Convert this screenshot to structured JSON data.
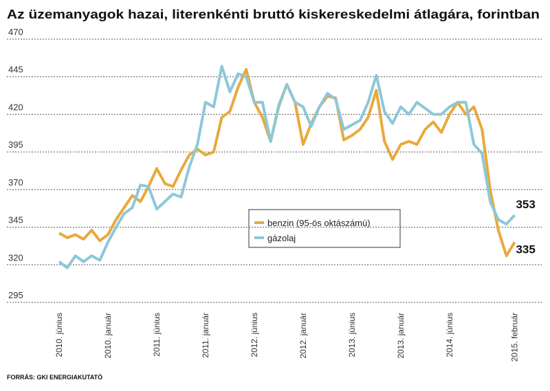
{
  "chart_data": {
    "type": "line",
    "title": "Az üzemanyagok hazai, literenkénti bruttó kiskereskedelmi átlagára, forintban",
    "source": "FORRÁS: GKI ENERGIAKUTATÓ",
    "categories": [
      "2010. június",
      null,
      null,
      null,
      null,
      null,
      "2010. január",
      null,
      null,
      null,
      null,
      null,
      "2011. június",
      null,
      null,
      null,
      null,
      null,
      "2011. január",
      null,
      null,
      null,
      null,
      null,
      "2012. június",
      null,
      null,
      null,
      null,
      null,
      "2012. január",
      null,
      null,
      null,
      null,
      null,
      "2013. június",
      null,
      null,
      null,
      null,
      null,
      "2013. január",
      null,
      null,
      null,
      null,
      null,
      "2014. június",
      null,
      null,
      null,
      null,
      null,
      null,
      null,
      "2015. február"
    ],
    "series": [
      {
        "name": "benzin (95-ös oktászámú)",
        "color": "#e8a93c",
        "values": [
          341,
          338,
          340,
          337,
          343,
          336,
          340,
          350,
          358,
          366,
          362,
          372,
          384,
          374,
          372,
          383,
          393,
          397,
          393,
          395,
          418,
          422,
          438,
          450,
          428,
          418,
          402,
          425,
          440,
          428,
          400,
          414,
          425,
          432,
          431,
          403,
          406,
          410,
          418,
          436,
          402,
          390,
          400,
          402,
          400,
          410,
          415,
          408,
          420,
          428,
          420,
          425,
          410,
          370,
          343,
          326,
          335
        ]
      },
      {
        "name": "gázolaj",
        "color": "#8cc8d8",
        "values": [
          322,
          318,
          326,
          322,
          326,
          323,
          335,
          345,
          354,
          358,
          373,
          372,
          357,
          362,
          367,
          365,
          385,
          400,
          428,
          425,
          452,
          435,
          447,
          445,
          428,
          428,
          402,
          426,
          440,
          428,
          425,
          412,
          425,
          434,
          430,
          410,
          413,
          416,
          428,
          446,
          422,
          414,
          425,
          420,
          428,
          424,
          420,
          420,
          425,
          428,
          428,
          400,
          394,
          362,
          350,
          347,
          353
        ]
      }
    ],
    "ylim": [
      295,
      470
    ],
    "yticks": [
      295,
      320,
      345,
      370,
      395,
      420,
      445,
      470
    ],
    "grid": true
  }
}
